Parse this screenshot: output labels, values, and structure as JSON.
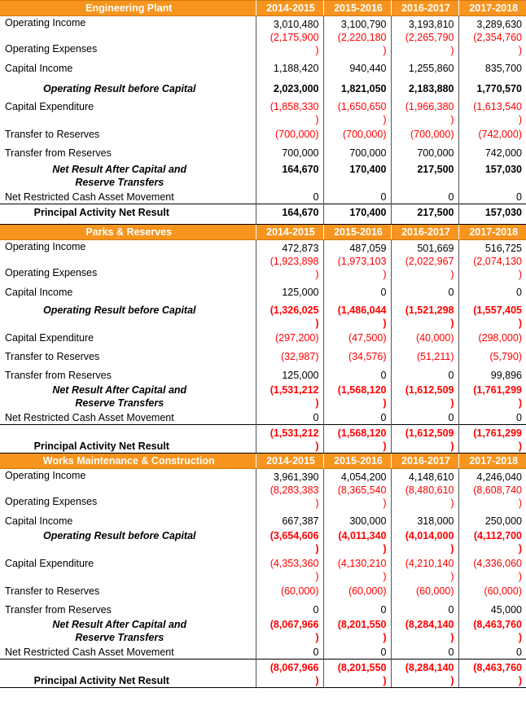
{
  "columns": [
    "2014-2015",
    "2015-2016",
    "2016-2017",
    "2017-2018"
  ],
  "sections": [
    {
      "title": "Engineering Plant",
      "rows": [
        {
          "label": "Operating Income",
          "values": [
            "3,010,480",
            "3,100,790",
            "3,193,810",
            "3,289,630"
          ],
          "neg": [
            false,
            false,
            false,
            false
          ],
          "style": "normal",
          "h": 32
        },
        {
          "label": "Operating Expenses",
          "values": [
            "(2,175,900\n)",
            "(2,220,180\n)",
            "(2,265,790\n)",
            "(2,354,760\n)"
          ],
          "neg": [
            true,
            true,
            true,
            true
          ],
          "style": "normal",
          "h": 0,
          "merge_prev": true
        },
        {
          "label": "Capital Income",
          "values": [
            "1,188,420",
            "940,440",
            "1,255,860",
            "835,700"
          ],
          "neg": [
            false,
            false,
            false,
            false
          ],
          "style": "normal",
          "h": 23
        },
        {
          "label": "Operating Result before Capital",
          "values": [
            "2,023,000",
            "1,821,050",
            "2,183,880",
            "1,770,570"
          ],
          "neg": [
            false,
            false,
            false,
            false
          ],
          "style": "bold",
          "h": 24
        },
        {
          "label": "Capital Expenditure",
          "values": [
            "(1,858,330\n)",
            "(1,650,650\n)",
            "(1,966,380\n)",
            "(1,613,540\n)"
          ],
          "neg": [
            true,
            true,
            true,
            true
          ],
          "style": "normal",
          "h": 34
        },
        {
          "label": "Transfer to Reserves",
          "values": [
            "(700,000)",
            "(700,000)",
            "(700,000)",
            "(742,000)"
          ],
          "neg": [
            true,
            true,
            true,
            true
          ],
          "style": "normal",
          "h": 23
        },
        {
          "label": "Transfer from Reserves",
          "values": [
            "700,000",
            "700,000",
            "700,000",
            "742,000"
          ],
          "neg": [
            false,
            false,
            false,
            false
          ],
          "style": "normal",
          "h": 20
        },
        {
          "label": "Net Result After Capital and Reserve Transfers",
          "values": [
            "164,670",
            "170,400",
            "217,500",
            "157,030"
          ],
          "neg": [
            false,
            false,
            false,
            false
          ],
          "style": "bold",
          "h": 34
        },
        {
          "label": "Net Restricted Cash Asset Movement",
          "values": [
            "0",
            "0",
            "0",
            "0"
          ],
          "neg": [
            false,
            false,
            false,
            false
          ],
          "style": "normal",
          "h": 18
        },
        {
          "label": "Principal Activity Net Result",
          "values": [
            "164,670",
            "170,400",
            "217,500",
            "157,030"
          ],
          "neg": [
            false,
            false,
            false,
            false
          ],
          "style": "total",
          "h": 25
        }
      ]
    },
    {
      "title": "Parks & Reserves",
      "rows": [
        {
          "label": "Operating Income",
          "values": [
            "472,873",
            "487,059",
            "501,669",
            "516,725"
          ],
          "neg": [
            false,
            false,
            false,
            false
          ],
          "style": "normal",
          "h": 32
        },
        {
          "label": "Operating Expenses",
          "values": [
            "(1,923,898\n)",
            "(1,973,103\n)",
            "(2,022,967\n)",
            "(2,074,130\n)"
          ],
          "neg": [
            true,
            true,
            true,
            true
          ],
          "style": "normal",
          "h": 0,
          "merge_prev": true
        },
        {
          "label": "Capital Income",
          "values": [
            "125,000",
            "0",
            "0",
            "0"
          ],
          "neg": [
            false,
            false,
            false,
            false
          ],
          "style": "normal",
          "h": 22
        },
        {
          "label": "Operating Result before Capital",
          "values": [
            "(1,326,025\n)",
            "(1,486,044\n)",
            "(1,521,298\n)",
            "(1,557,405\n)"
          ],
          "neg": [
            true,
            true,
            true,
            true
          ],
          "style": "bold",
          "h": 34
        },
        {
          "label": "Capital Expenditure",
          "values": [
            "(297,200)",
            "(47,500)",
            "(40,000)",
            "(298,000)"
          ],
          "neg": [
            true,
            true,
            true,
            true
          ],
          "style": "normal",
          "h": 23
        },
        {
          "label": "Transfer to Reserves",
          "values": [
            "(32,987)",
            "(34,576)",
            "(51,211)",
            "(5,790)"
          ],
          "neg": [
            true,
            true,
            true,
            true
          ],
          "style": "normal",
          "h": 23
        },
        {
          "label": "Transfer from Reserves",
          "values": [
            "125,000",
            "0",
            "0",
            "99,896"
          ],
          "neg": [
            false,
            false,
            false,
            false
          ],
          "style": "normal",
          "h": 16
        },
        {
          "label": "Net Result After Capital and Reserve Transfers",
          "values": [
            "(1,531,212\n)",
            "(1,568,120\n)",
            "(1,612,509\n)",
            "(1,761,299\n)"
          ],
          "neg": [
            true,
            true,
            true,
            true
          ],
          "style": "bold",
          "h": 32
        },
        {
          "label": "Net Restricted Cash Asset Movement",
          "values": [
            "0",
            "0",
            "0",
            "0"
          ],
          "neg": [
            false,
            false,
            false,
            false
          ],
          "style": "normal",
          "h": 18
        },
        {
          "label": "Principal Activity Net Result",
          "values": [
            "(1,531,212\n)",
            "(1,568,120\n)",
            "(1,612,509\n)",
            "(1,761,299\n)"
          ],
          "neg": [
            true,
            true,
            true,
            true
          ],
          "style": "total",
          "h": 34
        }
      ]
    },
    {
      "title": "Works Maintenance & Construction",
      "rows": [
        {
          "label": "Operating Income",
          "values": [
            "3,961,390",
            "4,054,200",
            "4,148,610",
            "4,246,040"
          ],
          "neg": [
            false,
            false,
            false,
            false
          ],
          "style": "normal",
          "h": 32
        },
        {
          "label": "Operating Expenses",
          "values": [
            "(8,283,383\n)",
            "(8,365,540\n)",
            "(8,480,610\n)",
            "(8,608,740\n)"
          ],
          "neg": [
            true,
            true,
            true,
            true
          ],
          "style": "normal",
          "h": 0,
          "merge_prev": true
        },
        {
          "label": "Capital Income",
          "values": [
            "667,387",
            "300,000",
            "318,000",
            "250,000"
          ],
          "neg": [
            false,
            false,
            false,
            false
          ],
          "style": "normal",
          "h": 18
        },
        {
          "label": "Operating Result before Capital",
          "values": [
            "(3,654,606\n)",
            "(4,011,340\n)",
            "(4,014,000\n)",
            "(4,112,700\n)"
          ],
          "neg": [
            true,
            true,
            true,
            true
          ],
          "style": "bold",
          "h": 32
        },
        {
          "label": "Capital Expenditure",
          "values": [
            "(4,353,360\n)",
            "(4,130,210\n)",
            "(4,210,140\n)",
            "(4,336,060\n)"
          ],
          "neg": [
            true,
            true,
            true,
            true
          ],
          "style": "normal",
          "h": 34
        },
        {
          "label": "Transfer to Reserves",
          "values": [
            "(60,000)",
            "(60,000)",
            "(60,000)",
            "(60,000)"
          ],
          "neg": [
            true,
            true,
            true,
            true
          ],
          "style": "normal",
          "h": 23
        },
        {
          "label": "Transfer from Reserves",
          "values": [
            "0",
            "0",
            "0",
            "45,000"
          ],
          "neg": [
            false,
            false,
            false,
            false
          ],
          "style": "normal",
          "h": 16
        },
        {
          "label": "Net Result After Capital and Reserve Transfers",
          "values": [
            "(8,067,966\n)",
            "(8,201,550\n)",
            "(8,284,140\n)",
            "(8,463,760\n)"
          ],
          "neg": [
            true,
            true,
            true,
            true
          ],
          "style": "bold",
          "h": 33
        },
        {
          "label": "Net Restricted Cash Asset Movement",
          "values": [
            "0",
            "0",
            "0",
            "0"
          ],
          "neg": [
            false,
            false,
            false,
            false
          ],
          "style": "normal",
          "h": 18
        },
        {
          "label": "Principal Activity Net Result",
          "values": [
            "(8,067,966\n)",
            "(8,201,550\n)",
            "(8,284,140\n)",
            "(8,463,760\n)"
          ],
          "neg": [
            true,
            true,
            true,
            true
          ],
          "style": "total",
          "h": 34
        }
      ]
    }
  ]
}
